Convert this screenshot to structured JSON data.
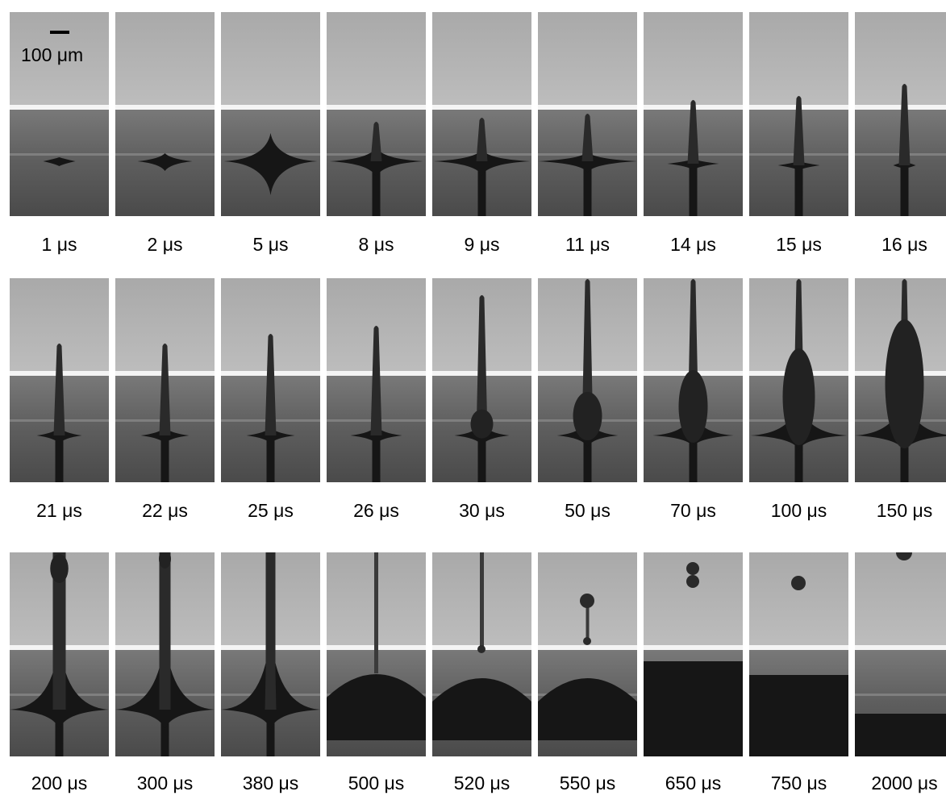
{
  "scale_bar": {
    "label": "100 μm"
  },
  "frames": [
    {
      "label": "1 μs"
    },
    {
      "label": "2 μs"
    },
    {
      "label": "5 μs"
    },
    {
      "label": "8 μs"
    },
    {
      "label": "9 μs"
    },
    {
      "label": "11 μs"
    },
    {
      "label": "14 μs"
    },
    {
      "label": "15 μs"
    },
    {
      "label": "16 μs"
    },
    {
      "label": "21 μs"
    },
    {
      "label": "22 μs"
    },
    {
      "label": "25 μs"
    },
    {
      "label": "26 μs"
    },
    {
      "label": "30 μs"
    },
    {
      "label": "50 μs"
    },
    {
      "label": "70 μs"
    },
    {
      "label": "100 μs"
    },
    {
      "label": "150 μs"
    },
    {
      "label": "200 μs"
    },
    {
      "label": "300 μs"
    },
    {
      "label": "380 μs"
    },
    {
      "label": "500 μs"
    },
    {
      "label": "520 μs"
    },
    {
      "label": "550 μs"
    },
    {
      "label": "650 μs"
    },
    {
      "label": "750 μs"
    },
    {
      "label": "2000 μs"
    }
  ]
}
